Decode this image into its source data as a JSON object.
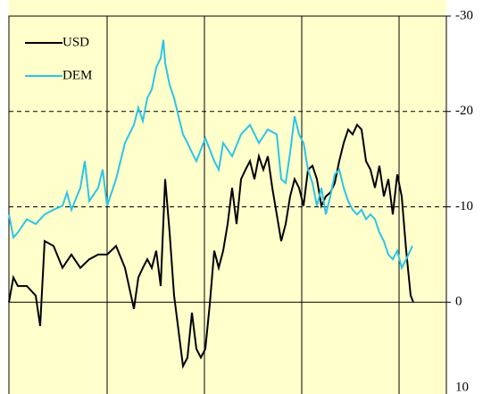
{
  "chart_data": {
    "type": "line",
    "ylim": [
      -30,
      10
    ],
    "y_inverted": true,
    "yticks": [
      -30,
      -20,
      -10,
      0,
      10
    ],
    "grid": true,
    "xlim": [
      0,
      490
    ],
    "legend": "upper left",
    "series": [
      {
        "name": "USD",
        "color": "#000000",
        "x": [
          0,
          5,
          10,
          20,
          30,
          35,
          40,
          50,
          60,
          70,
          80,
          90,
          100,
          110,
          120,
          130,
          140,
          145,
          150,
          155,
          160,
          165,
          170,
          175,
          180,
          185,
          190,
          195,
          200,
          205,
          210,
          215,
          220,
          225,
          230,
          235,
          240,
          245,
          250,
          255,
          260,
          265,
          270,
          275,
          280,
          285,
          290,
          295,
          300,
          305,
          310,
          315,
          320,
          325,
          330,
          335,
          340,
          345,
          350,
          355,
          360,
          365,
          370,
          375,
          380,
          385,
          390,
          395,
          400,
          405,
          410,
          415,
          420,
          425,
          430,
          435,
          440,
          445,
          450,
          453
        ],
        "values": [
          0,
          -2.6,
          -1.7,
          -1.7,
          -0.7,
          2.5,
          -6.4,
          -5.9,
          -3.6,
          -5.0,
          -3.6,
          -4.5,
          -5.0,
          -5.0,
          -5.9,
          -3.6,
          0.7,
          -2.6,
          -3.6,
          -4.5,
          -3.6,
          -5.4,
          -1.7,
          -12.9,
          -7.3,
          -0.7,
          3.0,
          6.7,
          5.8,
          1.1,
          4.9,
          5.8,
          4.9,
          0.2,
          -5.4,
          -3.6,
          -5.4,
          -8.2,
          -12.0,
          -8.2,
          -12.9,
          -13.9,
          -14.8,
          -12.9,
          -15.3,
          -13.9,
          -15.3,
          -12.0,
          -9.2,
          -6.4,
          -8.2,
          -11.1,
          -12.9,
          -12.0,
          -10.1,
          -13.9,
          -14.3,
          -12.9,
          -10.1,
          -11.1,
          -11.5,
          -12.5,
          -14.8,
          -16.7,
          -18.1,
          -17.6,
          -18.6,
          -18.1,
          -14.8,
          -13.9,
          -12.0,
          -14.3,
          -11.1,
          -12.9,
          -9.2,
          -13.4,
          -11.1,
          -5.4,
          -0.7,
          0
        ]
      },
      {
        "name": "DEM",
        "color": "#2cc4e8",
        "x": [
          0,
          5,
          10,
          20,
          30,
          40,
          50,
          60,
          65,
          70,
          80,
          85,
          90,
          100,
          105,
          110,
          115,
          120,
          130,
          140,
          145,
          150,
          155,
          160,
          165,
          170,
          173,
          175,
          180,
          185,
          190,
          195,
          200,
          205,
          210,
          220,
          230,
          235,
          240,
          250,
          260,
          270,
          280,
          290,
          300,
          305,
          310,
          315,
          320,
          325,
          330,
          335,
          340,
          345,
          350,
          355,
          360,
          365,
          370,
          375,
          380,
          385,
          390,
          395,
          400,
          405,
          410,
          415,
          420,
          425,
          430,
          435,
          440,
          445,
          452
        ],
        "values": [
          -9.2,
          -6.8,
          -7.3,
          -8.7,
          -8.2,
          -9.2,
          -9.7,
          -10.1,
          -11.5,
          -9.7,
          -12.0,
          -14.8,
          -10.6,
          -12.0,
          -13.9,
          -10.1,
          -11.5,
          -12.9,
          -16.7,
          -18.6,
          -20.4,
          -19.0,
          -21.4,
          -22.3,
          -24.6,
          -25.6,
          -27.5,
          -25.1,
          -22.8,
          -21.4,
          -19.5,
          -17.6,
          -16.7,
          -15.7,
          -14.8,
          -17.2,
          -14.8,
          -13.9,
          -16.7,
          -15.3,
          -17.6,
          -18.6,
          -16.7,
          -18.1,
          -17.6,
          -12.9,
          -12.5,
          -15.7,
          -19.5,
          -17.6,
          -16.7,
          -13.9,
          -12.5,
          -10.1,
          -12.0,
          -9.2,
          -11.1,
          -13.4,
          -13.9,
          -12.0,
          -10.6,
          -9.7,
          -9.2,
          -9.7,
          -8.7,
          -9.2,
          -8.7,
          -7.3,
          -6.4,
          -5.0,
          -4.5,
          -5.4,
          -3.6,
          -4.5,
          -5.9
        ]
      }
    ]
  }
}
